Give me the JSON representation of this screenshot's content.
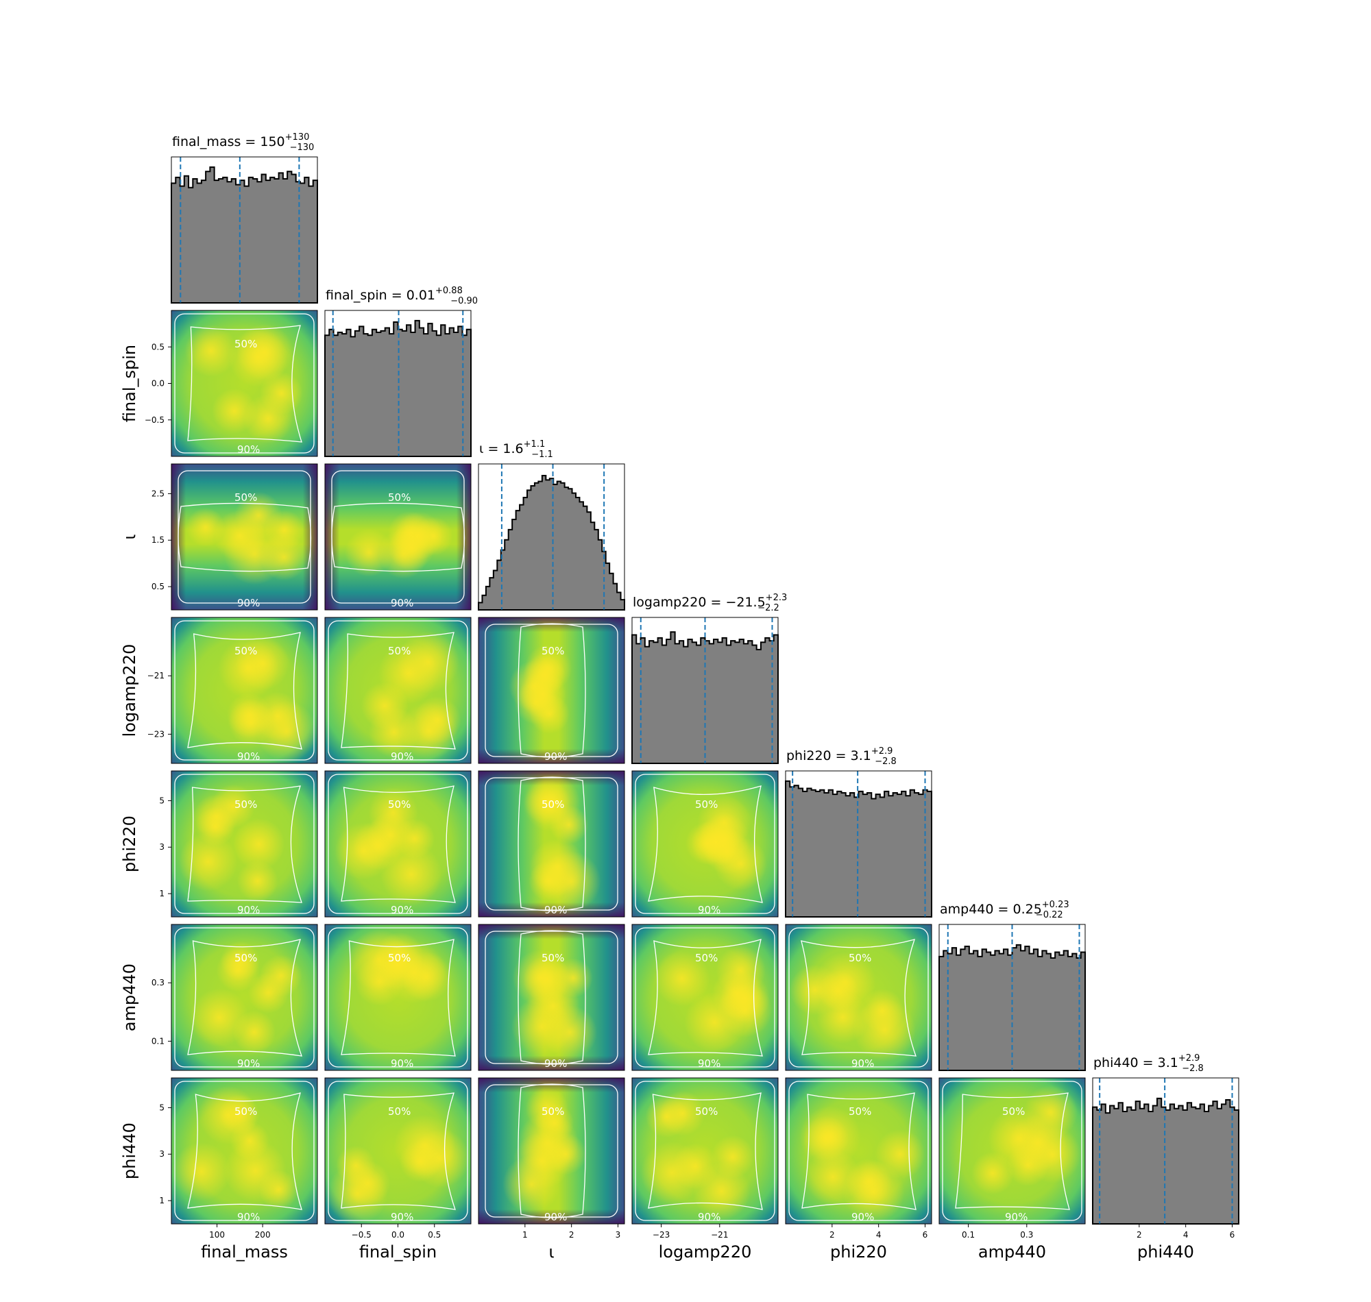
{
  "chart_data": {
    "type": "corner",
    "parameters": [
      "final_mass",
      "final_spin",
      "ι",
      "logamp220",
      "phi220",
      "amp440",
      "phi440"
    ],
    "axis_labels": [
      "final_mass",
      "final_spin",
      "ι",
      "logamp220",
      "phi220",
      "amp440",
      "phi440"
    ],
    "ranges": [
      [
        0,
        320
      ],
      [
        -1,
        1
      ],
      [
        0,
        3.14
      ],
      [
        -24,
        -19
      ],
      [
        0,
        6.28
      ],
      [
        0,
        0.5
      ],
      [
        0,
        6.28
      ]
    ],
    "ticks": [
      {
        "values": [
          100,
          200
        ],
        "labels": [
          "100",
          "200"
        ]
      },
      {
        "values": [
          -0.5,
          0,
          0.5
        ],
        "labels": [
          "−0.5",
          "0.0",
          "0.5"
        ]
      },
      {
        "values": [
          0.5,
          1.5,
          2.5
        ],
        "labels": [
          "0.5",
          "1.5",
          "2.5"
        ],
        "x_values": [
          1,
          2,
          3
        ],
        "x_labels": [
          "1",
          "2",
          "3"
        ]
      },
      {
        "values": [
          -23,
          -21
        ],
        "labels": [
          "−23",
          "−21"
        ]
      },
      {
        "values": [
          1,
          3,
          5
        ],
        "labels": [
          "1",
          "3",
          "5"
        ],
        "x_values": [
          2,
          4,
          6
        ],
        "x_labels": [
          "2",
          "4",
          "6"
        ]
      },
      {
        "values": [
          0.1,
          0.3
        ],
        "labels": [
          "0.1",
          "0.3"
        ]
      },
      {
        "values": [
          1,
          3,
          5
        ],
        "labels": [
          "1",
          "3",
          "5"
        ],
        "x_values": [
          2,
          4,
          6
        ],
        "x_labels": [
          "2",
          "4",
          "6"
        ]
      }
    ],
    "titles": [
      {
        "prefix": "final_mass = 150",
        "sup": "+130",
        "sub": "−130"
      },
      {
        "prefix": "final_spin = 0.01",
        "sup": "+0.88",
        "sub": "−0.90"
      },
      {
        "prefix": "ι = 1.6",
        "sup": "+1.1",
        "sub": "−1.1"
      },
      {
        "prefix": "logamp220 = −21.5",
        "sup": "+2.3",
        "sub": "−2.2"
      },
      {
        "prefix": "phi220 = 3.1",
        "sup": "+2.9",
        "sub": "−2.8"
      },
      {
        "prefix": "amp440 = 0.25",
        "sup": "+0.23",
        "sub": "−0.22"
      },
      {
        "prefix": "phi440 = 3.1",
        "sup": "+2.9",
        "sub": "−2.8"
      }
    ],
    "quantiles": [
      [
        20,
        150,
        280
      ],
      [
        -0.89,
        0.01,
        0.89
      ],
      [
        0.5,
        1.6,
        2.7
      ],
      [
        -23.7,
        -21.5,
        -19.2
      ],
      [
        0.3,
        3.1,
        6.0
      ],
      [
        0.03,
        0.25,
        0.48
      ],
      [
        0.3,
        3.1,
        6.0
      ]
    ],
    "histograms": [
      [
        0.82,
        0.86,
        0.8,
        0.87,
        0.79,
        0.85,
        0.82,
        0.84,
        0.9,
        0.93,
        0.84,
        0.85,
        0.86,
        0.83,
        0.85,
        0.81,
        0.84,
        0.8,
        0.86,
        0.85,
        0.83,
        0.88,
        0.84,
        0.86,
        0.85,
        0.89,
        0.85,
        0.9,
        0.88,
        0.83,
        0.82,
        0.86,
        0.8,
        0.84
      ],
      [
        0.83,
        0.87,
        0.83,
        0.85,
        0.84,
        0.87,
        0.82,
        0.86,
        0.89,
        0.84,
        0.83,
        0.87,
        0.85,
        0.86,
        0.88,
        0.84,
        0.92,
        0.87,
        0.86,
        0.9,
        0.85,
        0.93,
        0.88,
        0.84,
        0.91,
        0.86,
        0.83,
        0.9,
        0.84,
        0.88,
        0.85,
        0.89,
        0.83,
        0.87
      ],
      [
        0.05,
        0.1,
        0.16,
        0.22,
        0.27,
        0.34,
        0.41,
        0.48,
        0.55,
        0.62,
        0.68,
        0.72,
        0.77,
        0.82,
        0.85,
        0.87,
        0.88,
        0.92,
        0.89,
        0.9,
        0.86,
        0.88,
        0.87,
        0.84,
        0.83,
        0.8,
        0.77,
        0.74,
        0.71,
        0.67,
        0.6,
        0.55,
        0.48,
        0.4,
        0.32,
        0.25,
        0.18,
        0.12,
        0.07
      ],
      [
        0.88,
        0.82,
        0.86,
        0.8,
        0.84,
        0.83,
        0.86,
        0.81,
        0.85,
        0.9,
        0.82,
        0.84,
        0.8,
        0.85,
        0.83,
        0.81,
        0.86,
        0.84,
        0.82,
        0.85,
        0.83,
        0.86,
        0.81,
        0.84,
        0.83,
        0.85,
        0.82,
        0.84,
        0.81,
        0.78,
        0.83,
        0.86,
        0.84,
        0.88
      ],
      [
        0.93,
        0.89,
        0.9,
        0.88,
        0.86,
        0.88,
        0.87,
        0.86,
        0.87,
        0.85,
        0.87,
        0.84,
        0.86,
        0.85,
        0.83,
        0.85,
        0.82,
        0.86,
        0.84,
        0.85,
        0.81,
        0.84,
        0.82,
        0.86,
        0.83,
        0.85,
        0.84,
        0.86,
        0.83,
        0.87,
        0.85,
        0.84,
        0.87,
        0.86
      ],
      [
        0.78,
        0.82,
        0.8,
        0.84,
        0.79,
        0.83,
        0.85,
        0.8,
        0.82,
        0.78,
        0.83,
        0.81,
        0.79,
        0.82,
        0.8,
        0.83,
        0.79,
        0.84,
        0.86,
        0.82,
        0.85,
        0.8,
        0.83,
        0.78,
        0.82,
        0.8,
        0.77,
        0.81,
        0.79,
        0.82,
        0.78,
        0.8,
        0.77,
        0.81
      ],
      [
        0.8,
        0.78,
        0.82,
        0.76,
        0.81,
        0.79,
        0.83,
        0.77,
        0.8,
        0.78,
        0.84,
        0.79,
        0.82,
        0.77,
        0.81,
        0.86,
        0.8,
        0.78,
        0.82,
        0.79,
        0.81,
        0.78,
        0.83,
        0.8,
        0.79,
        0.82,
        0.77,
        0.81,
        0.84,
        0.79,
        0.82,
        0.85,
        0.8,
        0.78
      ]
    ],
    "contour_labels": [
      "50%",
      "90%"
    ],
    "colormap": "viridis",
    "colors": {
      "hist_fill": "#808080",
      "hist_edge": "#000000",
      "quantile_line": "#1f77b4",
      "contour": "#ffffff",
      "high_density": "#fde725",
      "low_density": "#440154"
    }
  }
}
